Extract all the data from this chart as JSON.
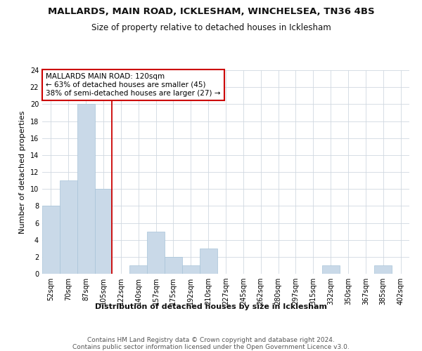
{
  "title": "MALLARDS, MAIN ROAD, ICKLESHAM, WINCHELSEA, TN36 4BS",
  "subtitle": "Size of property relative to detached houses in Icklesham",
  "xlabel": "Distribution of detached houses by size in Icklesham",
  "ylabel": "Number of detached properties",
  "footer_line1": "Contains HM Land Registry data © Crown copyright and database right 2024.",
  "footer_line2": "Contains public sector information licensed under the Open Government Licence v3.0.",
  "bar_labels": [
    "52sqm",
    "70sqm",
    "87sqm",
    "105sqm",
    "122sqm",
    "140sqm",
    "157sqm",
    "175sqm",
    "192sqm",
    "210sqm",
    "227sqm",
    "245sqm",
    "262sqm",
    "280sqm",
    "297sqm",
    "315sqm",
    "332sqm",
    "350sqm",
    "367sqm",
    "385sqm",
    "402sqm"
  ],
  "bar_values": [
    8,
    11,
    20,
    10,
    0,
    1,
    5,
    2,
    1,
    3,
    0,
    0,
    0,
    0,
    0,
    0,
    1,
    0,
    0,
    1,
    0
  ],
  "bar_color": "#c9d9e8",
  "bar_edgecolor": "#a8c4d8",
  "grid_color": "#d0d8e0",
  "annotation_box_text": "MALLARDS MAIN ROAD: 120sqm\n← 63% of detached houses are smaller (45)\n38% of semi-detached houses are larger (27) →",
  "vline_x": 3.5,
  "vline_color": "#cc0000",
  "annotation_box_color": "#ffffff",
  "annotation_box_edgecolor": "#cc0000",
  "ylim": [
    0,
    24
  ],
  "yticks": [
    0,
    2,
    4,
    6,
    8,
    10,
    12,
    14,
    16,
    18,
    20,
    22,
    24
  ],
  "title_fontsize": 9.5,
  "subtitle_fontsize": 8.5,
  "xlabel_fontsize": 8,
  "ylabel_fontsize": 8,
  "tick_fontsize": 7,
  "annotation_fontsize": 7.5,
  "footer_fontsize": 6.5
}
